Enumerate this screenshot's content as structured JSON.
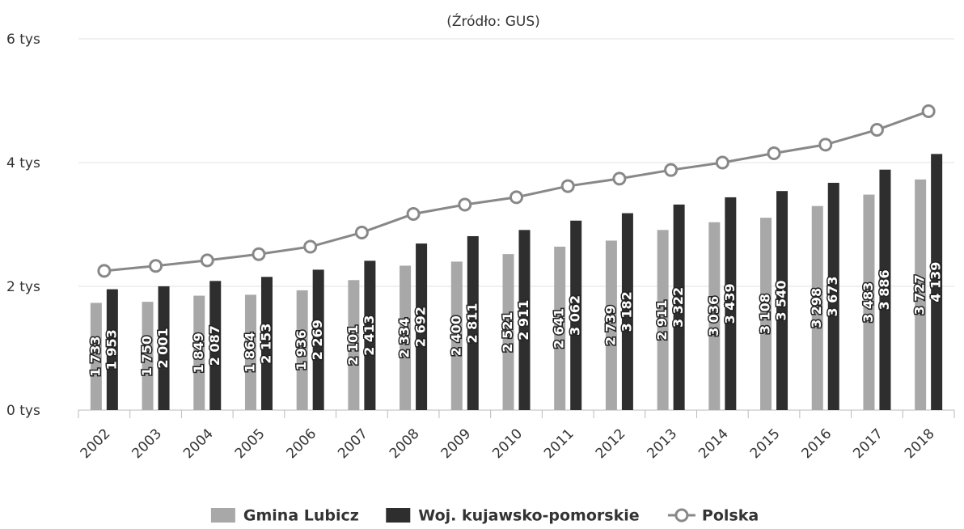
{
  "chart_data": {
    "type": "bar-line",
    "subtitle": "(Źródło: GUS)",
    "categories": [
      "2002",
      "2003",
      "2004",
      "2005",
      "2006",
      "2007",
      "2008",
      "2009",
      "2010",
      "2011",
      "2012",
      "2013",
      "2014",
      "2015",
      "2016",
      "2017",
      "2018"
    ],
    "series": [
      {
        "name": "Gmina Lubicz",
        "type": "bar",
        "color": "#a8a8a8",
        "values": [
          1733,
          1750,
          1849,
          1864,
          1936,
          2101,
          2334,
          2400,
          2521,
          2641,
          2739,
          2911,
          3036,
          3108,
          3298,
          3483,
          3727
        ],
        "value_labels": [
          "1 733",
          "1 750",
          "1 849",
          "1 864",
          "1 936",
          "2 101",
          "2 334",
          "2 400",
          "2 521",
          "2 641",
          "2 739",
          "2 911",
          "3 036",
          "3 108",
          "3 298",
          "3 483",
          "3 727"
        ]
      },
      {
        "name": "Woj. kujawsko-pomorskie",
        "type": "bar",
        "color": "#2e2e2e",
        "values": [
          1953,
          2001,
          2087,
          2153,
          2269,
          2413,
          2692,
          2811,
          2911,
          3062,
          3182,
          3322,
          3439,
          3540,
          3673,
          3886,
          4139
        ],
        "value_labels": [
          "1 953",
          "2 001",
          "2 087",
          "2 153",
          "2 269",
          "2 413",
          "2 692",
          "2 811",
          "2 911",
          "3 062",
          "3 182",
          "3 322",
          "3 439",
          "3 540",
          "3 673",
          "3 886",
          "4 139"
        ]
      },
      {
        "name": "Polska",
        "type": "line",
        "color": "#888888",
        "values": [
          2250,
          2330,
          2420,
          2520,
          2640,
          2870,
          3170,
          3320,
          3440,
          3620,
          3740,
          3880,
          4000,
          4150,
          4290,
          4530,
          4830
        ]
      }
    ],
    "ylim": [
      0,
      6000
    ],
    "yticks": [
      {
        "value": 0,
        "label": "0 tys"
      },
      {
        "value": 2000,
        "label": "2 tys"
      },
      {
        "value": 4000,
        "label": "4 tys"
      },
      {
        "value": 6000,
        "label": "6 tys"
      }
    ],
    "grid": true
  }
}
